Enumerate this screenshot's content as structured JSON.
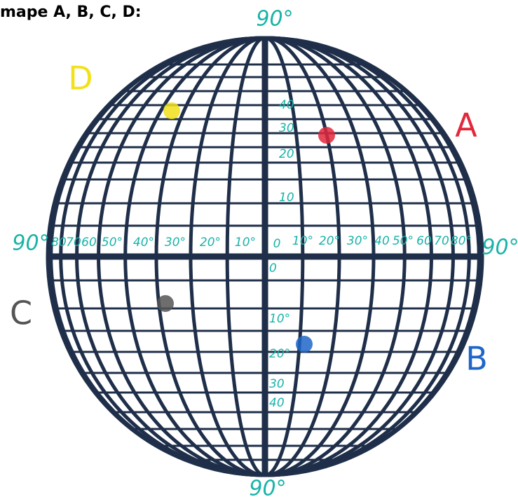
{
  "header": {
    "title": "mape A, B, C, D:"
  },
  "poles": {
    "top": "90°",
    "bottom": "90°",
    "left": "90°",
    "right": "90°"
  },
  "equator_labels": {
    "west": [
      "80",
      "70",
      "60",
      "50°",
      "40°",
      "30°",
      "20°",
      "10°"
    ],
    "center": "0",
    "east": [
      "10°",
      "20°",
      "30°",
      "40",
      "50°",
      "60",
      "70",
      "80°"
    ]
  },
  "meridian_labels": {
    "north": [
      "40",
      "30",
      "20",
      "10"
    ],
    "south": [
      "0",
      "10°",
      "20°",
      "30",
      "40"
    ]
  },
  "points": [
    {
      "label": "D",
      "color": "#f2e11a"
    },
    {
      "label": "A",
      "color": "#e2283c"
    },
    {
      "label": "C",
      "color": "#555555"
    },
    {
      "label": "B",
      "color": "#1e66c8"
    }
  ]
}
